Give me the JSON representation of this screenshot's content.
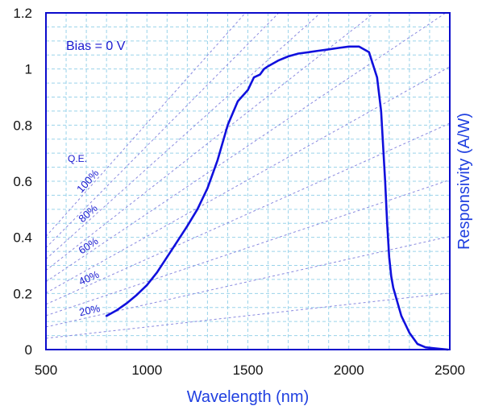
{
  "chart_data": {
    "type": "line",
    "xlabel": "Wavelength (nm)",
    "ylabel": "Responsivity (A/W)",
    "xlim": [
      500,
      2500
    ],
    "ylim": [
      0,
      1.2
    ],
    "x_ticks": [
      500,
      1000,
      1500,
      2000,
      2500
    ],
    "y_ticks": [
      0,
      0.2,
      0.4,
      0.6,
      0.8,
      1,
      1.2
    ],
    "x_tick_labels": [
      "500",
      "1000",
      "1500",
      "2000",
      "2500"
    ],
    "y_tick_labels": [
      "0",
      "0.2",
      "0.4",
      "0.6",
      "0.8",
      "1",
      "1.2"
    ],
    "x_grid_step": 100,
    "y_grid_step": 0.05,
    "grid": true,
    "annotation_bias": "Bias = 0 V",
    "qe_title": "Q.E.",
    "qe_lines": [
      {
        "qe": 0.1,
        "label": ""
      },
      {
        "qe": 0.2,
        "label": "20%"
      },
      {
        "qe": 0.3,
        "label": ""
      },
      {
        "qe": 0.4,
        "label": "40%"
      },
      {
        "qe": 0.5,
        "label": ""
      },
      {
        "qe": 0.6,
        "label": "60%"
      },
      {
        "qe": 0.7,
        "label": ""
      },
      {
        "qe": 0.8,
        "label": "80%"
      },
      {
        "qe": 0.9,
        "label": ""
      },
      {
        "qe": 1.0,
        "label": "100%"
      }
    ],
    "series": [
      {
        "x": [
          800,
          850,
          900,
          950,
          1000,
          1050,
          1100,
          1150,
          1200,
          1250,
          1300,
          1350,
          1400,
          1450,
          1500,
          1530,
          1560,
          1580,
          1600,
          1650,
          1700,
          1750,
          1800,
          1850,
          1900,
          1950,
          2000,
          2050,
          2100,
          2140,
          2160,
          2180,
          2190,
          2200,
          2210,
          2220,
          2240,
          2260,
          2300,
          2340,
          2380,
          2420,
          2460,
          2490
        ],
        "y": [
          0.12,
          0.14,
          0.165,
          0.195,
          0.23,
          0.275,
          0.33,
          0.385,
          0.44,
          0.5,
          0.575,
          0.675,
          0.8,
          0.885,
          0.925,
          0.97,
          0.98,
          1.0,
          1.01,
          1.03,
          1.045,
          1.055,
          1.06,
          1.065,
          1.07,
          1.075,
          1.08,
          1.08,
          1.06,
          0.97,
          0.85,
          0.6,
          0.45,
          0.33,
          0.26,
          0.22,
          0.17,
          0.12,
          0.06,
          0.02,
          0.008,
          0.005,
          0.002,
          0
        ]
      }
    ],
    "colors": {
      "curve": "#1010dd",
      "axis_label": "#1f3fe0",
      "grid": "#9ad3ea",
      "qe_lines": "#8a8ae0",
      "annotation": "#1a1ad0",
      "frame": "#0a0acc"
    }
  }
}
